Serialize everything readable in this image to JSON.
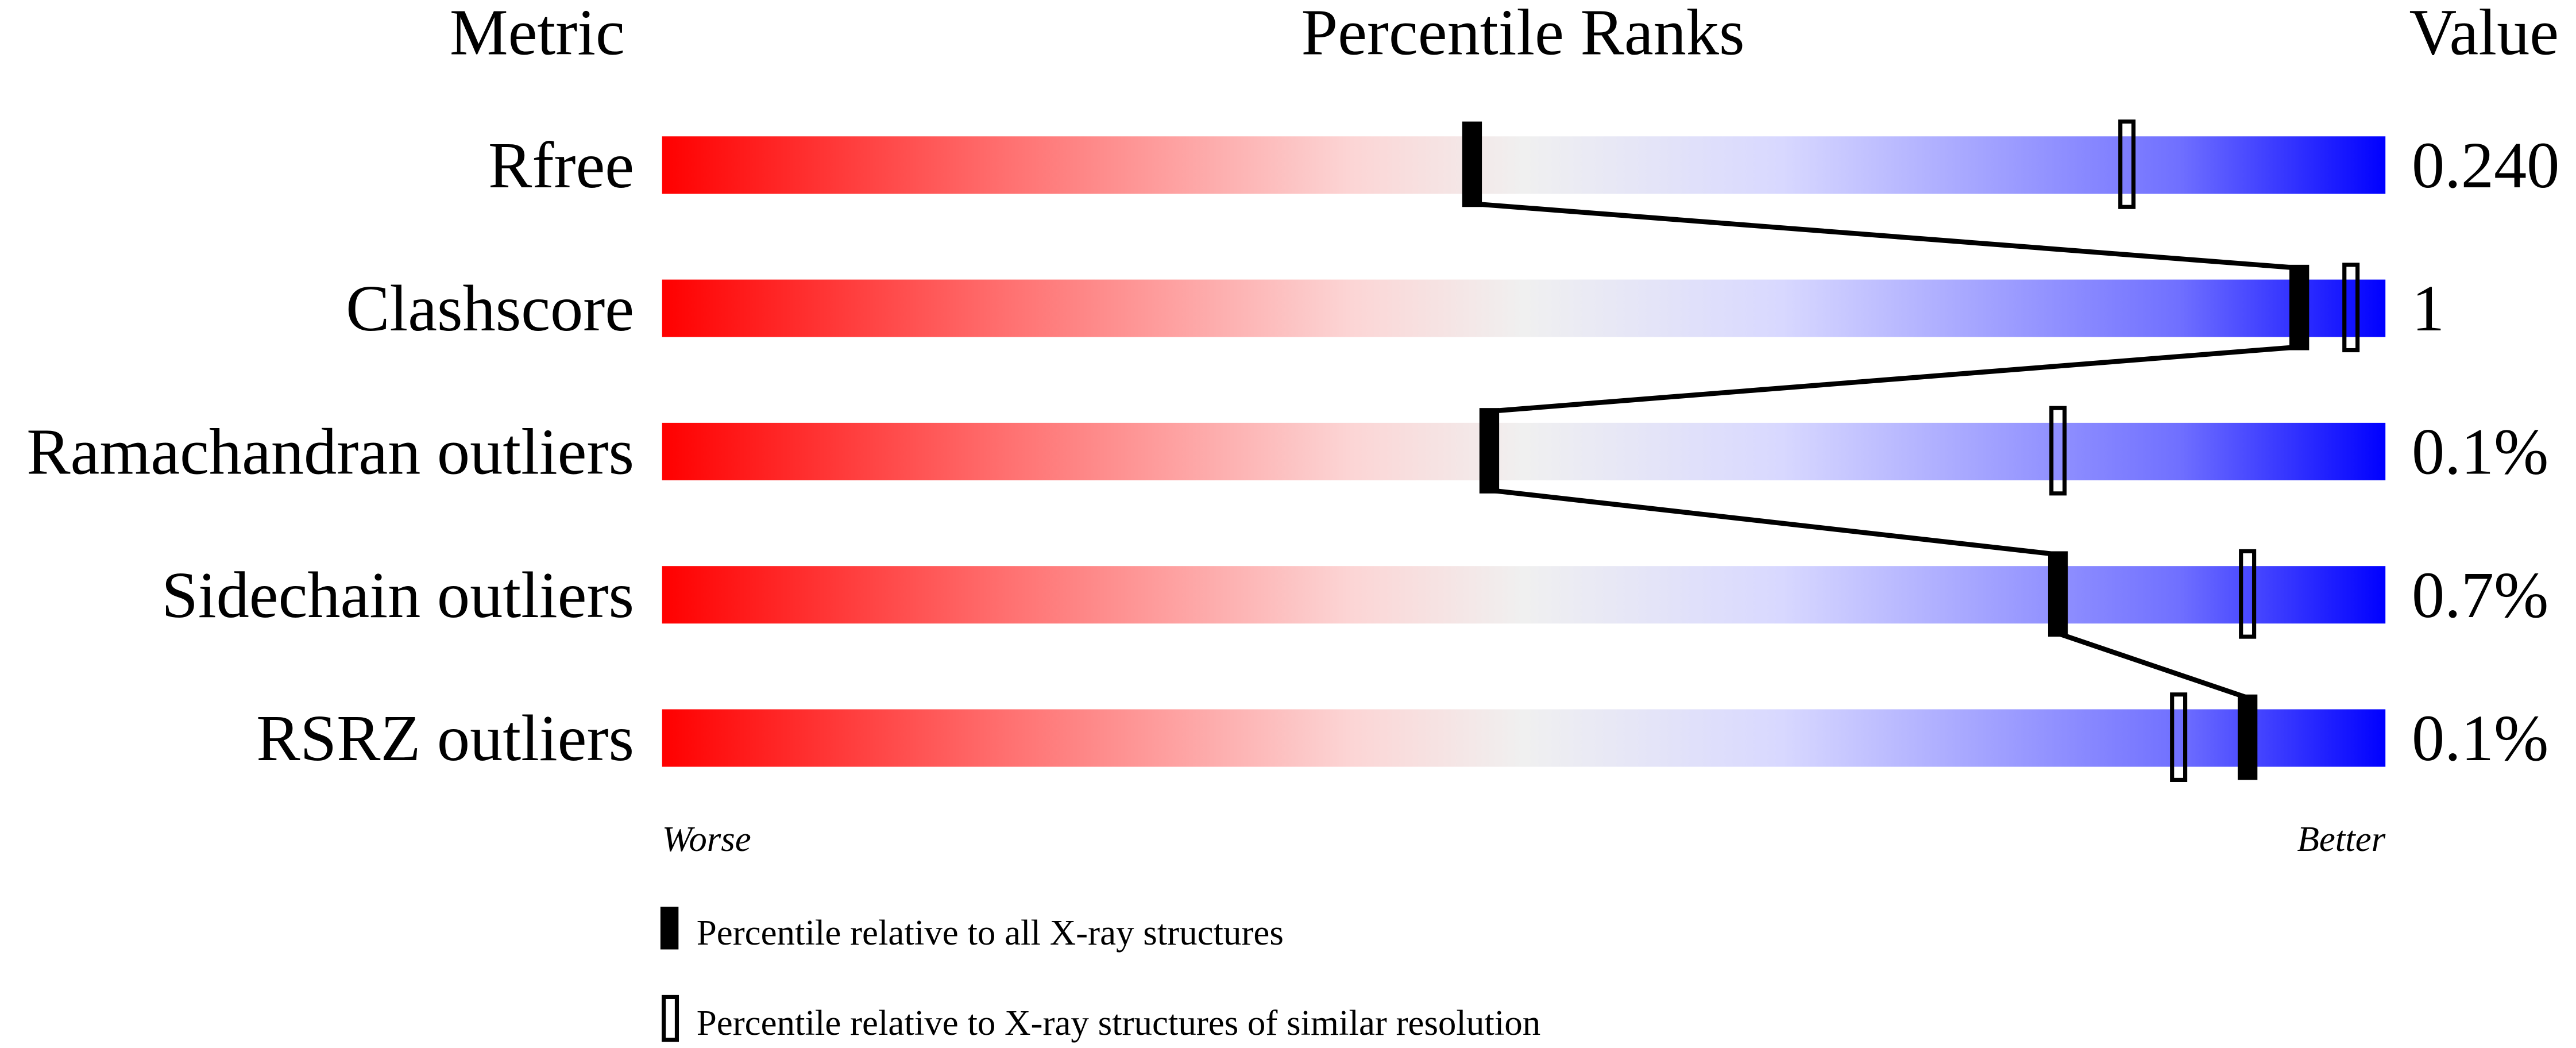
{
  "chart_data": {
    "type": "percentile-slider",
    "headers": {
      "metric": "Metric",
      "ranks": "Percentile Ranks",
      "value": "Value"
    },
    "xlim": [
      0,
      100
    ],
    "axis_labels": {
      "left": "Worse",
      "right": "Better"
    },
    "gradient_colors": [
      "#ff0000",
      "#ff7070",
      "#fcd5d5",
      "#f0f0f0",
      "#d8d8ff",
      "#7070ff",
      "#0000ff"
    ],
    "metrics": [
      {
        "name": "Rfree",
        "value": "0.240",
        "percentile_all": 47,
        "percentile_similar": 85
      },
      {
        "name": "Clashscore",
        "value": "1",
        "percentile_all": 95,
        "percentile_similar": 98
      },
      {
        "name": "Ramachandran outliers",
        "value": "0.1%",
        "percentile_all": 48,
        "percentile_similar": 81
      },
      {
        "name": "Sidechain outliers",
        "value": "0.7%",
        "percentile_all": 81,
        "percentile_similar": 92
      },
      {
        "name": "RSRZ outliers",
        "value": "0.1%",
        "percentile_all": 92,
        "percentile_similar": 88
      }
    ],
    "legend": [
      {
        "marker": "filled",
        "label": "Percentile relative to all X-ray structures"
      },
      {
        "marker": "open",
        "label": "Percentile relative to X-ray structures of similar resolution"
      }
    ]
  }
}
